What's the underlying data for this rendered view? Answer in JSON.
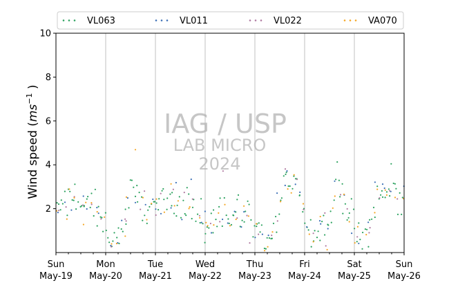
{
  "chart_data": {
    "type": "scatter",
    "ylabel": "Wind speed (ms⁻¹)",
    "ylabel_main": "Wind speed (",
    "ylabel_ms": "ms",
    "ylabel_exp": "−1",
    "ylabel_close": ")",
    "ylim": [
      0,
      10
    ],
    "yticks": [
      "2",
      "4",
      "6",
      "8",
      "10"
    ],
    "xlim": [
      "2024-05-19",
      "2024-05-26"
    ],
    "xtick_days": [
      "Sun",
      "Mon",
      "Tue",
      "Wed",
      "Thu",
      "Fri",
      "Sat",
      "Sun"
    ],
    "xtick_dates": [
      "May-19",
      "May-20",
      "May-21",
      "May-22",
      "May-23",
      "May-24",
      "May-25",
      "May-26"
    ],
    "vertical_grid": true,
    "legend_position": "top (above plot, 4 columns)",
    "watermark": {
      "line1": "IAG / USP",
      "line2": "LAB MICRO",
      "line3": "2024"
    },
    "series": [
      {
        "name": "VL063",
        "color": "#2ca25f"
      },
      {
        "name": "VL011",
        "color": "#3b6fb6"
      },
      {
        "name": "VL022",
        "color": "#b07aa1"
      },
      {
        "name": "VA070",
        "color": "#f5a623"
      }
    ],
    "daily_profile": {
      "x_day_offset": [
        0.0,
        0.1,
        0.2,
        0.35,
        0.5,
        0.6,
        0.7,
        0.8,
        0.9,
        1.0,
        1.1,
        1.2,
        1.35,
        1.5,
        1.6,
        1.75,
        1.9,
        2.0,
        2.2,
        2.4,
        2.55,
        2.7,
        2.8,
        2.9,
        3.0,
        3.1,
        3.25,
        3.4,
        3.55,
        3.7,
        3.85,
        4.0,
        4.1,
        4.2,
        4.3,
        4.4,
        4.5,
        4.65,
        4.8,
        4.95,
        5.05,
        5.2,
        5.35,
        5.45,
        5.5,
        5.6,
        5.7,
        5.85,
        6.0,
        6.05,
        6.15,
        6.3,
        6.45,
        6.6,
        6.75,
        6.9,
        7.0
      ],
      "y_wind_speed": [
        1.9,
        2.1,
        2.3,
        2.5,
        2.2,
        1.9,
        2.4,
        2.0,
        1.7,
        1.4,
        0.6,
        0.7,
        1.0,
        3.0,
        2.6,
        2.2,
        2.0,
        2.1,
        2.2,
        2.3,
        2.5,
        2.3,
        1.7,
        1.5,
        1.2,
        1.0,
        1.8,
        2.0,
        1.6,
        1.8,
        1.4,
        0.9,
        0.5,
        0.5,
        0.6,
        0.9,
        2.0,
        3.2,
        3.6,
        2.4,
        1.0,
        0.8,
        1.6,
        0.9,
        1.5,
        2.5,
        3.0,
        2.0,
        1.2,
        0.6,
        0.5,
        1.2,
        2.3,
        2.6,
        2.7,
        2.5,
        2.3
      ]
    }
  }
}
